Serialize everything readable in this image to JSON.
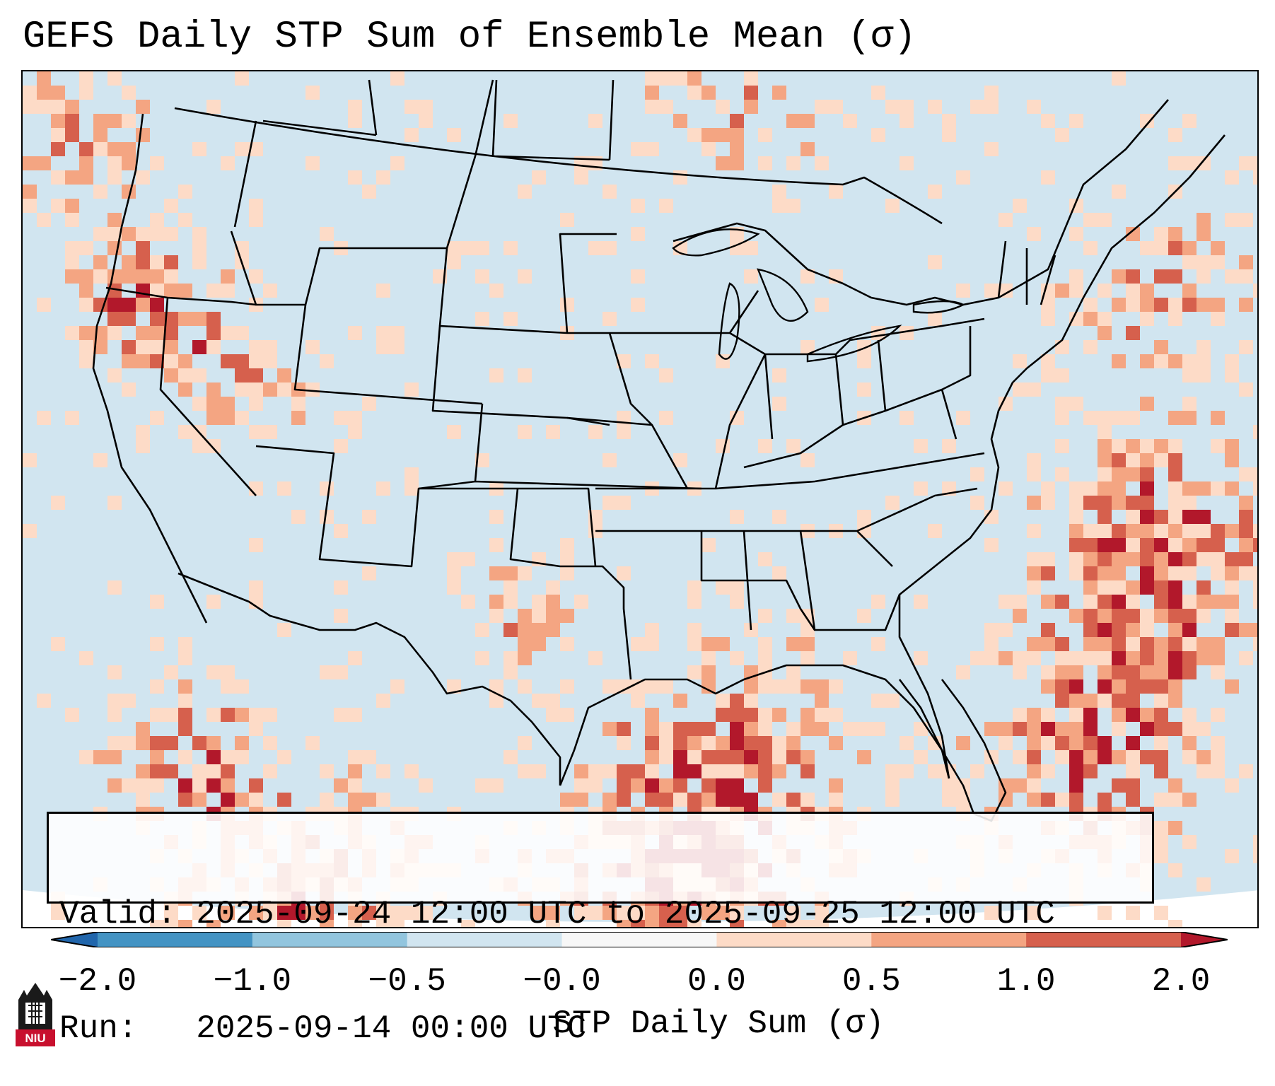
{
  "title": "GEFS Daily STP Sum of Ensemble Mean (σ)",
  "info": {
    "valid_line": "Valid: 2025-09-24 12:00 UTC to 2025-09-25 12:00 UTC",
    "run_line": "Run:   2025-09-14 00:00 UTC"
  },
  "colorbar": {
    "label": "STP Daily Sum (σ)",
    "ticks": [
      "−2.0",
      "−1.0",
      "−0.5",
      "−0.0",
      "0.0",
      "0.5",
      "1.0",
      "2.0"
    ],
    "segments": [
      {
        "range": "below -2.0",
        "color": "#2166ac"
      },
      {
        "range": "-2.0 to -1.0",
        "color": "#4393c3"
      },
      {
        "range": "-1.0 to -0.5",
        "color": "#92c5de"
      },
      {
        "range": "-0.5 to -0.0",
        "color": "#d1e5f0"
      },
      {
        "range": "-0.0 to 0.0",
        "color": "#f7f7f7"
      },
      {
        "range": "0.0 to 0.5",
        "color": "#fddbc7"
      },
      {
        "range": "0.5 to 1.0",
        "color": "#f4a582"
      },
      {
        "range": "1.0 to 2.0",
        "color": "#d6604d"
      },
      {
        "range": "above 2.0",
        "color": "#b2182b"
      }
    ]
  },
  "colors": {
    "background_field": "#d1e5f0",
    "low_positive": "#fddbc7",
    "mid_positive": "#f4a582",
    "high_positive": "#d6604d",
    "very_high": "#b2182b"
  },
  "logo": {
    "text": "NIU",
    "icon": "niu-logo-icon"
  }
}
